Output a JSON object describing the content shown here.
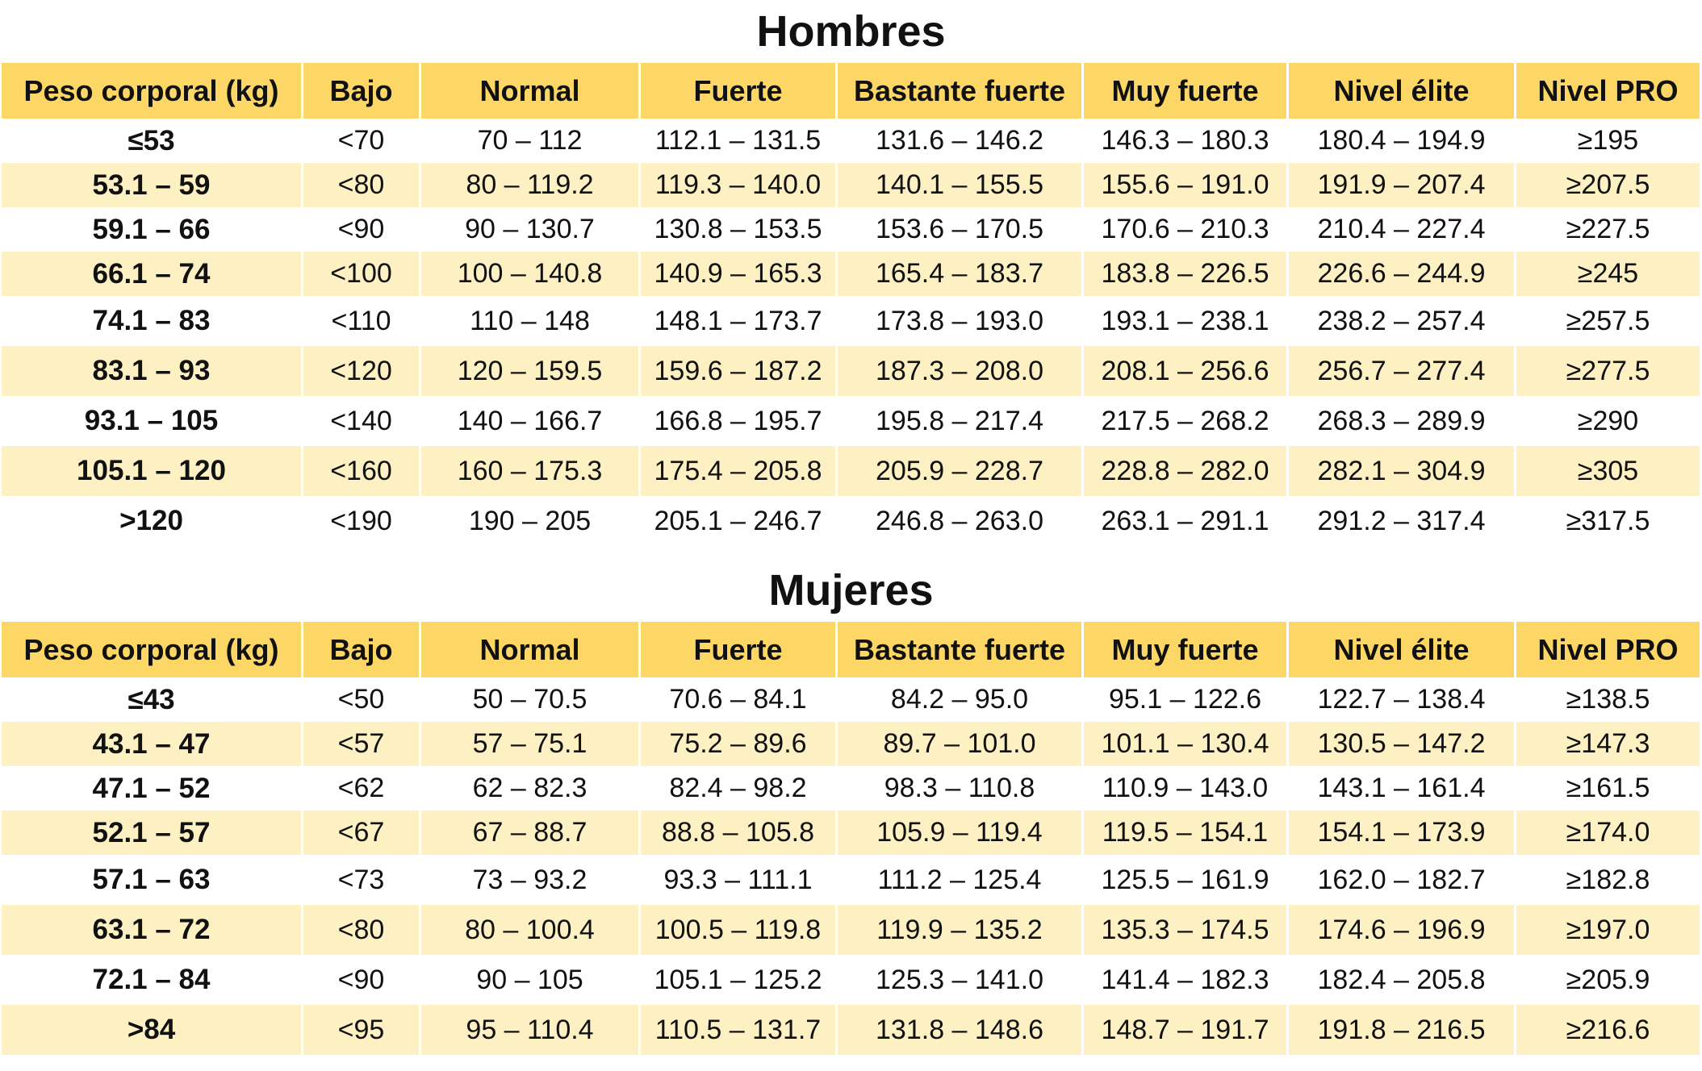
{
  "columns": [
    "Peso corporal (kg)",
    "Bajo",
    "Normal",
    "Fuerte",
    "Bastante fuerte",
    "Muy fuerte",
    "Nivel élite",
    "Nivel PRO"
  ],
  "colors": {
    "header_bg": "#fcd765",
    "stripe_bg": "#fdf1c3",
    "row_bg": "#ffffff"
  },
  "men": {
    "title": "Hombres",
    "rows": [
      [
        "≤53",
        "<70",
        "70 – 112",
        "112.1 – 131.5",
        "131.6 – 146.2",
        "146.3 – 180.3",
        "180.4 – 194.9",
        "≥195"
      ],
      [
        "53.1 – 59",
        "<80",
        "80 – 119.2",
        "119.3 – 140.0",
        "140.1 – 155.5",
        "155.6 – 191.0",
        "191.9 – 207.4",
        "≥207.5"
      ],
      [
        "59.1 – 66",
        "<90",
        "90 – 130.7",
        "130.8 – 153.5",
        "153.6 – 170.5",
        "170.6 – 210.3",
        "210.4 – 227.4",
        "≥227.5"
      ],
      [
        "66.1 – 74",
        "<100",
        "100 – 140.8",
        "140.9 – 165.3",
        "165.4 – 183.7",
        "183.8 – 226.5",
        "226.6 – 244.9",
        "≥245"
      ],
      [
        "74.1 – 83",
        "<110",
        "110 – 148",
        "148.1 – 173.7",
        "173.8 – 193.0",
        "193.1 – 238.1",
        "238.2 – 257.4",
        "≥257.5"
      ],
      [
        "83.1 – 93",
        "<120",
        "120 – 159.5",
        "159.6 – 187.2",
        "187.3 – 208.0",
        "208.1 – 256.6",
        "256.7 – 277.4",
        "≥277.5"
      ],
      [
        "93.1 – 105",
        "<140",
        "140 – 166.7",
        "166.8 – 195.7",
        "195.8 – 217.4",
        "217.5 – 268.2",
        "268.3 – 289.9",
        "≥290"
      ],
      [
        "105.1 – 120",
        "<160",
        "160 – 175.3",
        "175.4 – 205.8",
        "205.9 – 228.7",
        "228.8 – 282.0",
        "282.1 – 304.9",
        "≥305"
      ],
      [
        ">120",
        "<190",
        "190 – 205",
        "205.1 – 246.7",
        "246.8 – 263.0",
        "263.1 – 291.1",
        "291.2 – 317.4",
        "≥317.5"
      ]
    ]
  },
  "women": {
    "title": "Mujeres",
    "rows": [
      [
        "≤43",
        "<50",
        "50 – 70.5",
        "70.6 – 84.1",
        "84.2 – 95.0",
        "95.1 – 122.6",
        "122.7 – 138.4",
        "≥138.5"
      ],
      [
        "43.1 – 47",
        "<57",
        "57 – 75.1",
        "75.2 – 89.6",
        "89.7 – 101.0",
        "101.1 – 130.4",
        "130.5 – 147.2",
        "≥147.3"
      ],
      [
        "47.1 – 52",
        "<62",
        "62 – 82.3",
        "82.4 – 98.2",
        "98.3 – 110.8",
        "110.9 – 143.0",
        "143.1 – 161.4",
        "≥161.5"
      ],
      [
        "52.1 – 57",
        "<67",
        "67 – 88.7",
        "88.8 – 105.8",
        "105.9 – 119.4",
        "119.5 – 154.1",
        "154.1 – 173.9",
        "≥174.0"
      ],
      [
        "57.1 – 63",
        "<73",
        "73 – 93.2",
        "93.3 – 111.1",
        "111.2 – 125.4",
        "125.5 – 161.9",
        "162.0 – 182.7",
        "≥182.8"
      ],
      [
        "63.1 – 72",
        "<80",
        "80 – 100.4",
        "100.5 – 119.8",
        "119.9 – 135.2",
        "135.3 – 174.5",
        "174.6 – 196.9",
        "≥197.0"
      ],
      [
        "72.1 – 84",
        "<90",
        "90 – 105",
        "105.1 – 125.2",
        "125.3 – 141.0",
        "141.4 – 182.3",
        "182.4 – 205.8",
        "≥205.9"
      ],
      [
        ">84",
        "<95",
        "95 – 110.4",
        "110.5 – 131.7",
        "131.8 – 148.6",
        "148.7 – 191.7",
        "191.8 – 216.5",
        "≥216.6"
      ]
    ]
  }
}
